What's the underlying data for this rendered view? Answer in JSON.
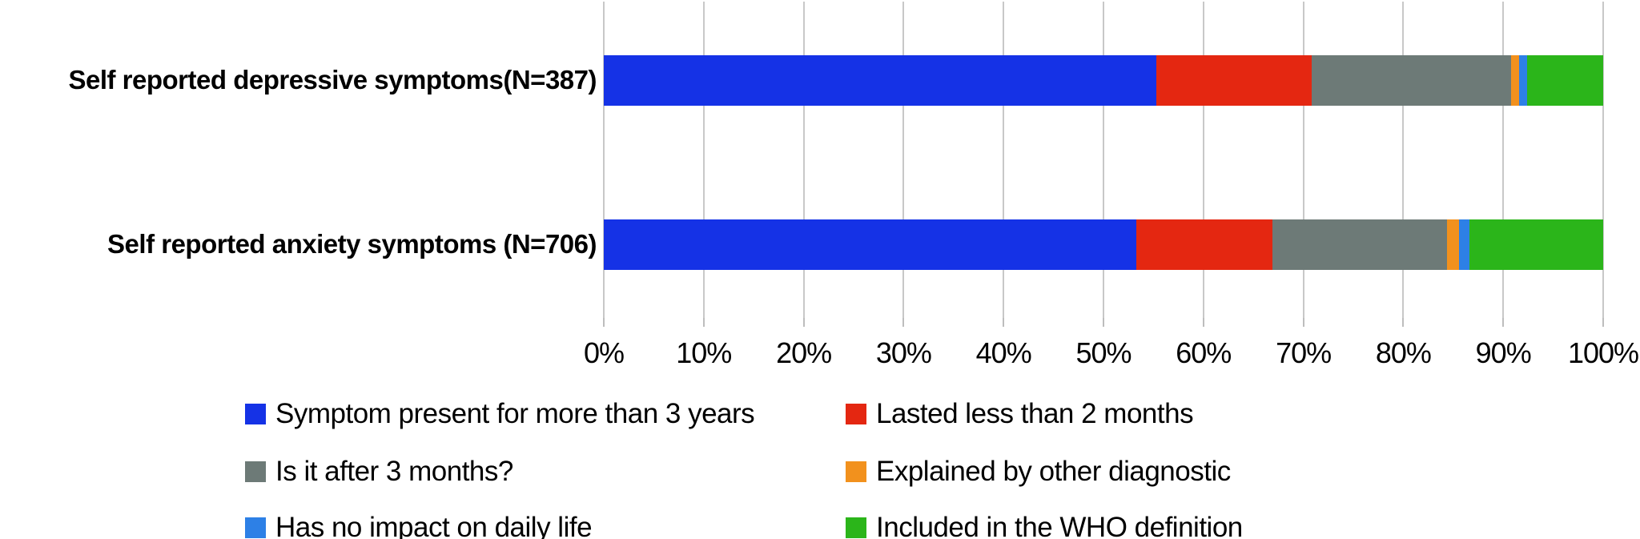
{
  "chart_data": {
    "type": "bar",
    "variant": "horizontal-stacked-100pct",
    "title": "",
    "unit": "%",
    "categories": [
      "Self reported depressive symptoms(N=387)",
      "Self reported anxiety symptoms (N=706)"
    ],
    "series": [
      {
        "name": "Symptom present for more than 3 years",
        "color": "#1532e6",
        "values": [
          55.3,
          53.3
        ]
      },
      {
        "name": "Lasted less than 2 months",
        "color": "#e42711",
        "values": [
          15.5,
          13.6
        ]
      },
      {
        "name": "Is it after 3 months?",
        "color": "#6d7a77",
        "values": [
          20.0,
          17.5
        ]
      },
      {
        "name": "Explained by other diagnostic",
        "color": "#f2911d",
        "values": [
          0.8,
          1.2
        ]
      },
      {
        "name": "Has no impact on daily life",
        "color": "#2d80e6",
        "values": [
          0.8,
          1.0
        ]
      },
      {
        "name": "Included in the WHO definition",
        "color": "#2bb51a",
        "values": [
          7.6,
          13.4
        ]
      }
    ],
    "x_axis": {
      "min": 0,
      "max": 100,
      "tick_step": 10,
      "tick_labels": [
        "0%",
        "10%",
        "20%",
        "30%",
        "40%",
        "50%",
        "60%",
        "70%",
        "80%",
        "90%",
        "100%"
      ],
      "grid": true
    },
    "legend_position": "bottom-two-columns"
  },
  "styles": {
    "background": "#ffffff",
    "gridline_color": "#c8c8c8",
    "text_color": "#000000"
  }
}
